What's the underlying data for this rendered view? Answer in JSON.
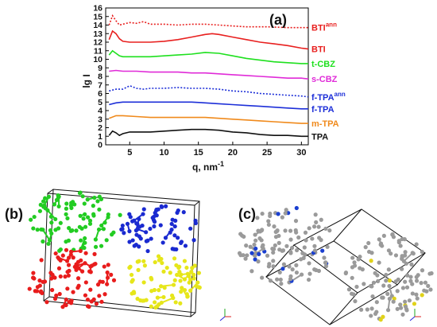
{
  "chart_data": {
    "type": "line",
    "panel_label": "(a)",
    "xlabel": "q, nm",
    "xlabel_sup": "-1",
    "ylabel": "lg I",
    "xlim": [
      1.5,
      31
    ],
    "ylim": [
      0,
      16
    ],
    "xticks": [
      "5",
      "10",
      "15",
      "20",
      "25",
      "30"
    ],
    "yticks": [
      "0",
      "1",
      "2",
      "3",
      "4",
      "5",
      "6",
      "7",
      "8",
      "9",
      "10",
      "11",
      "12",
      "13",
      "14",
      "15",
      "16"
    ],
    "grid": false,
    "legend": "right-side labels",
    "series": [
      {
        "name": "BTI",
        "name_sup": "ann",
        "color": "#e8201f",
        "dashed": true,
        "x": [
          2,
          2.5,
          3,
          3.5,
          4,
          5,
          6,
          7,
          8,
          10,
          12,
          14,
          16,
          18,
          20,
          22,
          25,
          28,
          30,
          31
        ],
        "y": [
          14.0,
          15.1,
          14.5,
          14.0,
          14.1,
          14.3,
          14.2,
          14.4,
          14.1,
          14.1,
          14.0,
          14.1,
          14.1,
          14.0,
          13.9,
          13.8,
          13.8,
          13.7,
          13.7,
          13.7
        ]
      },
      {
        "name": "BTI",
        "name_sup": "",
        "color": "#e8201f",
        "dashed": false,
        "x": [
          2,
          2.5,
          3,
          3.5,
          4,
          5,
          6,
          8,
          10,
          12,
          14,
          16,
          17,
          18,
          20,
          22,
          24,
          26,
          28,
          30,
          31
        ],
        "y": [
          12.3,
          13.3,
          13.0,
          12.4,
          12.1,
          12.0,
          12.0,
          12.0,
          12.1,
          12.3,
          12.6,
          12.9,
          13.0,
          12.9,
          12.6,
          12.3,
          12.0,
          11.8,
          11.6,
          11.3,
          11.2
        ]
      },
      {
        "name": "t-CBZ",
        "name_sup": "",
        "color": "#1ee01e",
        "dashed": false,
        "x": [
          2,
          2.5,
          3,
          3.5,
          4,
          5,
          6,
          8,
          10,
          12,
          14,
          16,
          18,
          20,
          22,
          24,
          26,
          28,
          30,
          31
        ],
        "y": [
          10.5,
          11.0,
          10.7,
          10.4,
          10.3,
          10.3,
          10.3,
          10.3,
          10.4,
          10.5,
          10.6,
          10.8,
          10.7,
          10.4,
          10.1,
          9.9,
          9.7,
          9.6,
          9.5,
          9.5
        ]
      },
      {
        "name": "s-CBZ",
        "name_sup": "",
        "color": "#e02bd8",
        "dashed": false,
        "x": [
          2,
          3,
          4,
          6,
          8,
          10,
          12,
          14,
          16,
          18,
          20,
          22,
          24,
          26,
          28,
          30,
          31
        ],
        "y": [
          8.6,
          8.7,
          8.6,
          8.6,
          8.5,
          8.5,
          8.5,
          8.4,
          8.4,
          8.3,
          8.2,
          8.1,
          8.0,
          7.9,
          7.8,
          7.8,
          7.7
        ]
      },
      {
        "name": "f-TPA",
        "name_sup": "ann",
        "color": "#1d2fd8",
        "dashed": true,
        "x": [
          2,
          3,
          4,
          5,
          6,
          7,
          8,
          10,
          12,
          14,
          16,
          18,
          20,
          22,
          24,
          26,
          28,
          30,
          31
        ],
        "y": [
          6.3,
          6.5,
          6.5,
          6.9,
          6.6,
          6.5,
          6.6,
          6.6,
          6.7,
          6.6,
          6.6,
          6.5,
          6.3,
          6.2,
          6.0,
          5.9,
          5.8,
          5.7,
          5.6
        ]
      },
      {
        "name": "f-TPA",
        "name_sup": "",
        "color": "#1d2fd8",
        "dashed": false,
        "x": [
          2,
          3,
          4,
          6,
          8,
          10,
          12,
          14,
          16,
          18,
          20,
          22,
          24,
          26,
          28,
          30,
          31
        ],
        "y": [
          4.7,
          4.9,
          5.0,
          5.0,
          5.0,
          5.0,
          5.0,
          5.0,
          4.9,
          4.8,
          4.7,
          4.6,
          4.5,
          4.4,
          4.3,
          4.2,
          4.2
        ]
      },
      {
        "name": "m-TPA",
        "name_sup": "",
        "color": "#f08a1c",
        "dashed": false,
        "x": [
          2,
          3,
          4,
          6,
          8,
          10,
          12,
          14,
          16,
          18,
          20,
          22,
          24,
          26,
          28,
          30,
          31
        ],
        "y": [
          3.1,
          3.4,
          3.4,
          3.3,
          3.2,
          3.2,
          3.2,
          3.2,
          3.2,
          3.1,
          3.0,
          2.9,
          2.8,
          2.7,
          2.6,
          2.5,
          2.5
        ]
      },
      {
        "name": "TPA",
        "name_sup": "",
        "color": "#111111",
        "dashed": false,
        "x": [
          2,
          2.5,
          3,
          3.5,
          4,
          5,
          6,
          8,
          10,
          12,
          14,
          16,
          18,
          20,
          22,
          24,
          26,
          28,
          30,
          31
        ],
        "y": [
          1.1,
          1.6,
          1.4,
          1.1,
          1.3,
          1.5,
          1.5,
          1.5,
          1.6,
          1.7,
          1.8,
          1.8,
          1.7,
          1.5,
          1.4,
          1.2,
          1.1,
          1.1,
          1.0,
          1.0
        ]
      }
    ]
  },
  "structures": {
    "panel_b_label": "(b)",
    "panel_c_label": "(c)",
    "colors": {
      "green": "#22cc22",
      "blue": "#1a2ad0",
      "red": "#e81c1c",
      "yellow": "#e6e61a",
      "grey": "#9a9a9a",
      "nitrogen": "#1a3fd0",
      "sulfur": "#e0d21a"
    }
  }
}
